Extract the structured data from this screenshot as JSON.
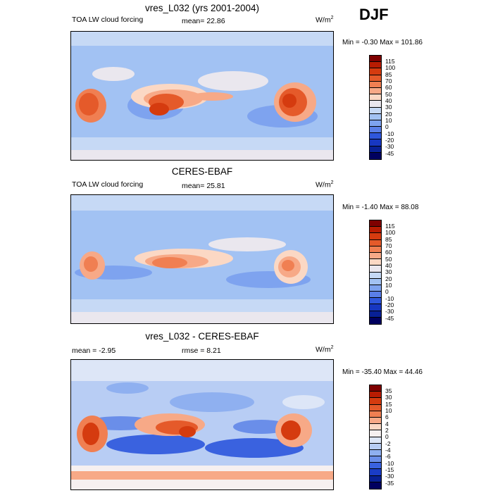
{
  "season_label": "DJF",
  "units_base": "W/m",
  "units_exp": "2",
  "panels": [
    {
      "title": "vres_L032 (yrs 2001-2004)",
      "left_label": "TOA LW cloud forcing",
      "center_label": "mean=  22.86",
      "minmax": "Min =  -0.30 Max = 101.86",
      "colorbar": {
        "levels": [
          "115",
          "100",
          "85",
          "70",
          "60",
          "50",
          "40",
          "30",
          "20",
          "10",
          "0",
          "-10",
          "-20",
          "-30",
          "-45"
        ],
        "colors": [
          "#7f0000",
          "#b81c02",
          "#d53b0f",
          "#e55a2a",
          "#f07f52",
          "#f7a987",
          "#fbd8c4",
          "#eae7ee",
          "#c6d9f5",
          "#a2c2f3",
          "#7ea3ef",
          "#5a7fe8",
          "#2f57dc",
          "#1737c1",
          "#082095",
          "#00005f"
        ]
      }
    },
    {
      "title": "CERES-EBAF",
      "left_label": "TOA LW cloud forcing",
      "center_label": "mean=  25.81",
      "minmax": "Min =  -1.40 Max =  88.08",
      "colorbar": {
        "levels": [
          "115",
          "100",
          "85",
          "70",
          "60",
          "50",
          "40",
          "30",
          "20",
          "10",
          "0",
          "-10",
          "-20",
          "-30",
          "-45"
        ],
        "colors": [
          "#7f0000",
          "#b81c02",
          "#d53b0f",
          "#e55a2a",
          "#f07f52",
          "#f7a987",
          "#fbd8c4",
          "#eae7ee",
          "#c6d9f5",
          "#a2c2f3",
          "#7ea3ef",
          "#5a7fe8",
          "#2f57dc",
          "#1737c1",
          "#082095",
          "#00005f"
        ]
      }
    },
    {
      "title": "vres_L032 - CERES-EBAF",
      "left_label": "mean =  -2.95",
      "center_label": "rmse =   8.21",
      "minmax": "Min = -35.40 Max =  44.46",
      "colorbar": {
        "levels": [
          "35",
          "30",
          "15",
          "10",
          "6",
          "4",
          "2",
          "0",
          "-2",
          "-4",
          "-6",
          "-10",
          "-15",
          "-30",
          "-35"
        ],
        "colors": [
          "#7f0000",
          "#b81c02",
          "#d53b0f",
          "#e55a2a",
          "#f07f52",
          "#f7a987",
          "#fbd8c4",
          "#f6f0f0",
          "#dde6f7",
          "#b8cdf4",
          "#8fb0f0",
          "#6a8ee9",
          "#3a62df",
          "#1a3cc6",
          "#082095",
          "#00005f"
        ]
      }
    }
  ]
}
